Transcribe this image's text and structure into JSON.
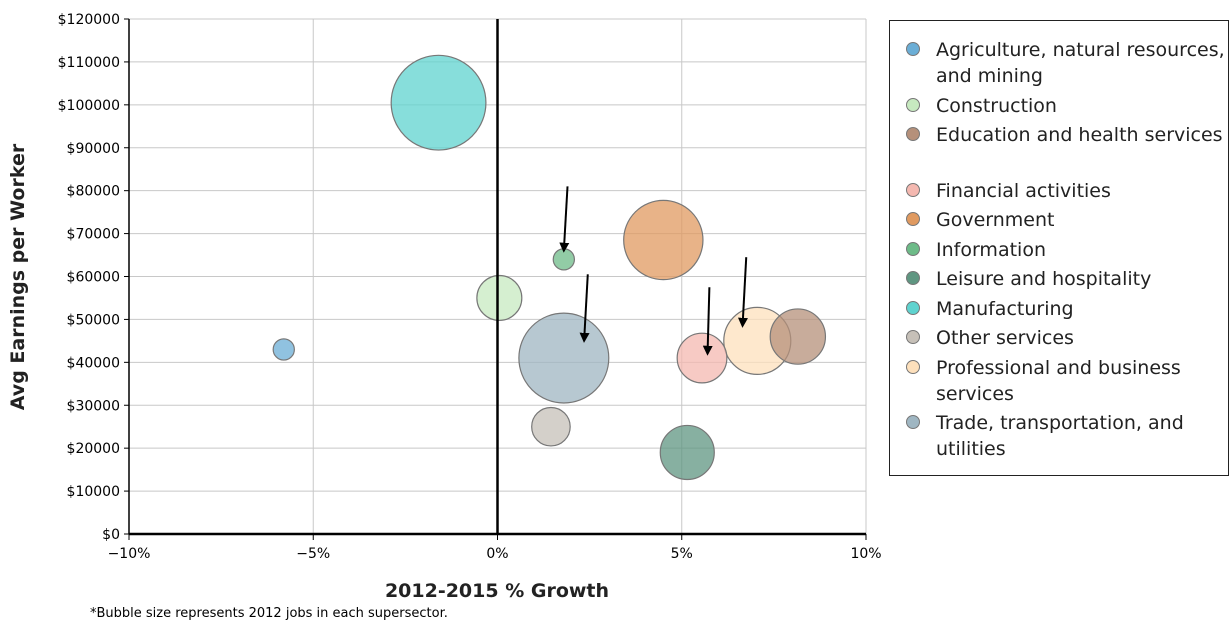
{
  "chart_data": {
    "type": "scatter",
    "title": "",
    "xlabel": "2012-2015 % Growth",
    "ylabel": "Avg Earnings per Worker",
    "xlim": [
      -10,
      10
    ],
    "ylim": [
      0,
      120000
    ],
    "x_ticks": [
      {
        "value": -10,
        "label": "−10%"
      },
      {
        "value": -5,
        "label": "−5%"
      },
      {
        "value": 0,
        "label": "0%"
      },
      {
        "value": 5,
        "label": "5%"
      },
      {
        "value": 10,
        "label": "10%"
      }
    ],
    "y_ticks": [
      {
        "value": 0,
        "label": "$0"
      },
      {
        "value": 10000,
        "label": "$10000"
      },
      {
        "value": 20000,
        "label": "$20000"
      },
      {
        "value": 30000,
        "label": "$30000"
      },
      {
        "value": 40000,
        "label": "$40000"
      },
      {
        "value": 50000,
        "label": "$50000"
      },
      {
        "value": 60000,
        "label": "$60000"
      },
      {
        "value": 70000,
        "label": "$70000"
      },
      {
        "value": 80000,
        "label": "$80000"
      },
      {
        "value": 90000,
        "label": "$90000"
      },
      {
        "value": 100000,
        "label": "$100000"
      },
      {
        "value": 110000,
        "label": "$110000"
      },
      {
        "value": 120000,
        "label": "$120000"
      }
    ],
    "grid": true,
    "legend_position": "right",
    "size_note": "*Bubble size represents 2012 jobs in each supersector.",
    "series": [
      {
        "name": "Agriculture, natural resources, and mining",
        "color": "#6baed6",
        "x": -5.8,
        "y": 43000,
        "size": 0.1
      },
      {
        "name": "Construction",
        "color": "#c7e9c0",
        "x": 0.05,
        "y": 55000,
        "size": 0.45
      },
      {
        "name": "Education and health services",
        "color": "#b5907a",
        "x": 8.15,
        "y": 46000,
        "size": 0.68
      },
      {
        "name": "Financial activities",
        "color": "#f4b8b0",
        "x": 5.55,
        "y": 41000,
        "size": 0.55
      },
      {
        "name": "Government",
        "color": "#e09a60",
        "x": 4.5,
        "y": 68500,
        "size": 1.4
      },
      {
        "name": "Information",
        "color": "#6dbb88",
        "x": 1.8,
        "y": 64000,
        "size": 0.1
      },
      {
        "name": "Leisure and hospitality",
        "color": "#5f9681",
        "x": 5.15,
        "y": 19000,
        "size": 0.65
      },
      {
        "name": "Manufacturing",
        "color": "#5fd3cf",
        "x": -1.6,
        "y": 100500,
        "size": 2.0
      },
      {
        "name": "Other services",
        "color": "#c6c0b8",
        "x": 1.45,
        "y": 25000,
        "size": 0.33
      },
      {
        "name": "Professional and business services",
        "color": "#fde0bc",
        "x": 7.05,
        "y": 45000,
        "size": 1.0
      },
      {
        "name": "Trade, transportation, and utilities",
        "color": "#9fb6c2",
        "x": 1.8,
        "y": 41000,
        "size": 1.8
      }
    ],
    "annotations": [
      {
        "type": "arrow",
        "from": [
          1.9,
          81000
        ],
        "to": [
          1.8,
          66000
        ]
      },
      {
        "type": "arrow",
        "from": [
          2.45,
          60500
        ],
        "to": [
          2.35,
          45000
        ]
      },
      {
        "type": "arrow",
        "from": [
          5.75,
          57500
        ],
        "to": [
          5.7,
          42000
        ]
      },
      {
        "type": "arrow",
        "from": [
          6.75,
          64500
        ],
        "to": [
          6.65,
          48500
        ]
      }
    ]
  }
}
